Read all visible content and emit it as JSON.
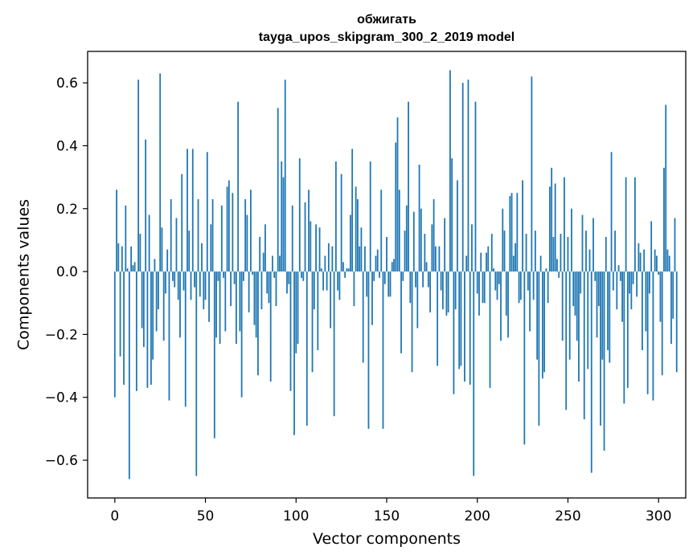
{
  "chart_data": {
    "type": "bar",
    "title": [
      "обжигать",
      "tayga_upos_skipgram_300_2_2019 model"
    ],
    "xlabel": "Vector components",
    "ylabel": "Components values",
    "xlim": [
      -15,
      315
    ],
    "ylim": [
      -0.72,
      0.7
    ],
    "xticks": [
      0,
      50,
      100,
      150,
      200,
      250,
      300
    ],
    "xtick_labels": [
      "0",
      "50",
      "100",
      "150",
      "200",
      "250",
      "300"
    ],
    "yticks": [
      -0.6,
      -0.4,
      -0.2,
      0.0,
      0.2,
      0.4,
      0.6
    ],
    "ytick_labels": [
      "−0.6",
      "−0.4",
      "−0.2",
      "0.0",
      "0.2",
      "0.4",
      "0.6"
    ],
    "bar_color": "#1f77b4",
    "x_start": 0,
    "values": [
      -0.4,
      0.26,
      0.09,
      -0.27,
      0.08,
      -0.36,
      0.21,
      0.01,
      -0.66,
      0.08,
      0.02,
      0.03,
      -0.38,
      0.61,
      0.12,
      -0.18,
      -0.24,
      0.42,
      -0.37,
      0.18,
      -0.36,
      -0.28,
      0.04,
      -0.19,
      -0.12,
      0.63,
      0.14,
      -0.22,
      -0.07,
      0.07,
      -0.41,
      0.23,
      -0.03,
      -0.05,
      0.17,
      -0.09,
      -0.21,
      0.31,
      -0.06,
      -0.43,
      0.39,
      0.13,
      -0.09,
      0.39,
      -0.05,
      -0.65,
      0.23,
      -0.08,
      0.09,
      -0.12,
      -0.09,
      0.38,
      -0.16,
      0.15,
      0.23,
      -0.53,
      -0.21,
      -0.03,
      -0.23,
      0.21,
      -0.02,
      -0.19,
      0.27,
      0.29,
      -0.11,
      0.25,
      -0.04,
      -0.23,
      0.54,
      -0.19,
      -0.4,
      -0.03,
      0.23,
      0.18,
      -0.13,
      0.26,
      -0.01,
      -0.17,
      -0.21,
      -0.33,
      0.11,
      -0.12,
      0.06,
      0.15,
      -0.07,
      -0.1,
      -0.35,
      0.05,
      -0.02,
      -0.11,
      0.52,
      0.05,
      0.35,
      0.3,
      0.61,
      -0.07,
      -0.04,
      -0.38,
      0.21,
      -0.52,
      -0.26,
      -0.23,
      0.36,
      -0.02,
      -0.03,
      0.22,
      -0.49,
      0.26,
      0.16,
      -0.32,
      -0.12,
      0.15,
      -0.25,
      0.14,
      0.01,
      -0.06,
      0.05,
      -0.06,
      0.09,
      -0.18,
      0.08,
      -0.46,
      0.35,
      -0.06,
      -0.09,
      0.31,
      0.03,
      -0.02,
      0.01,
      0.01,
      0.18,
      0.39,
      -0.11,
      0.27,
      0.23,
      0.08,
      0.14,
      -0.29,
      0.08,
      -0.08,
      -0.5,
      0.35,
      -0.17,
      -0.03,
      0.05,
      0.07,
      -0.02,
      0.26,
      -0.5,
      -0.04,
      0.11,
      -0.08,
      -0.08,
      0.03,
      0.04,
      0.41,
      0.49,
      0.26,
      -0.26,
      -0.03,
      0.13,
      0.21,
      0.54,
      -0.1,
      -0.32,
      0.19,
      -0.05,
      -0.18,
      0.34,
      0.2,
      -0.05,
      0.12,
      0.03,
      -0.05,
      -0.13,
      0.15,
      0.23,
      0.08,
      -0.3,
      0.08,
      -0.06,
      -0.12,
      0.17,
      -0.14,
      -0.13,
      0.64,
      0.36,
      -0.39,
      -0.12,
      0.29,
      -0.31,
      -0.3,
      0.6,
      -0.35,
      0.05,
      0.61,
      -0.36,
      0.15,
      -0.65,
      0.54,
      -0.07,
      -0.14,
      0.06,
      -0.1,
      -0.1,
      0.06,
      0.08,
      -0.37,
      0.12,
      0.01,
      -0.06,
      -0.09,
      -0.04,
      -0.22,
      0.2,
      0.13,
      -0.14,
      -0.21,
      0.24,
      0.25,
      0.05,
      0.09,
      0.25,
      -0.1,
      -0.09,
      0.29,
      -0.55,
      0.12,
      -0.06,
      -0.19,
      0.62,
      -0.09,
      0.13,
      -0.28,
      -0.49,
      0.05,
      -0.34,
      -0.32,
      0.01,
      -0.1,
      0.27,
      0.33,
      0.11,
      0.28,
      0.04,
      -0.02,
      0.12,
      -0.22,
      0.3,
      -0.44,
      0.11,
      -0.28,
      0.2,
      -0.11,
      -0.14,
      -0.22,
      -0.35,
      -0.07,
      0.18,
      -0.47,
      0.13,
      -0.31,
      0.07,
      -0.64,
      0.17,
      -0.03,
      -0.21,
      -0.11,
      -0.49,
      -0.28,
      -0.57,
      0.11,
      -0.25,
      -0.29,
      0.38,
      -0.06,
      0.13,
      -0.12,
      0.02,
      -0.03,
      -0.16,
      -0.42,
      0.3,
      -0.37,
      -0.07,
      -0.12,
      -0.04,
      0.3,
      -0.08,
      0.09,
      0.06,
      -0.25,
      0.07,
      -0.19,
      -0.39,
      -0.07,
      0.16,
      -0.41,
      0.07,
      0.05,
      -0.01,
      -0.16,
      -0.33,
      0.33,
      0.53,
      0.07,
      0.05,
      -0.23,
      -0.15,
      0.17,
      -0.32
    ]
  }
}
